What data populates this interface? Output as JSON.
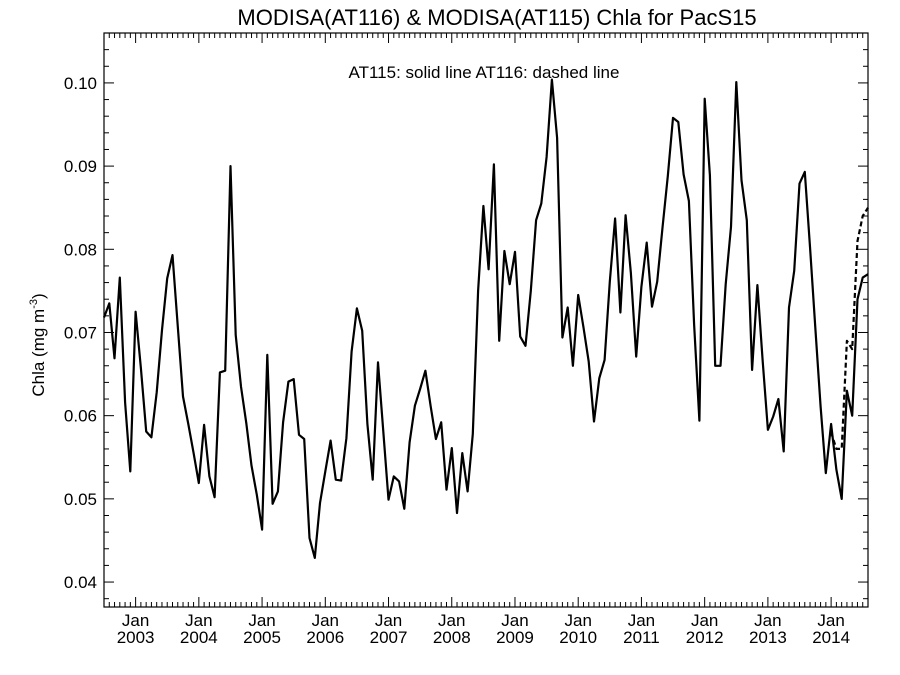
{
  "chart_data": {
    "type": "line",
    "title": "MODISA(AT116) & MODISA(AT115)  Chla for PacS15",
    "annotation": "AT115: solid line   AT116: dashed line",
    "ylabel": "Chla (mg m",
    "ylabel_superscript": "-3",
    "ylabel_close": ")",
    "ylim": [
      0.037,
      0.106
    ],
    "xlim": [
      "2002-07-01",
      "2014-08-01"
    ],
    "y_ticks": [
      "0.04",
      "0.05",
      "0.06",
      "0.07",
      "0.08",
      "0.09",
      "0.10"
    ],
    "x_tick_month": "Jan",
    "x_tick_years": [
      "2003",
      "2004",
      "2005",
      "2006",
      "2007",
      "2008",
      "2009",
      "2010",
      "2011",
      "2012",
      "2013",
      "2014"
    ],
    "series": [
      {
        "name": "AT115",
        "style": "solid",
        "points": [
          [
            "2002-07",
            0.0718
          ],
          [
            "2002-08",
            0.0735
          ],
          [
            "2002-09",
            0.0669
          ],
          [
            "2002-10",
            0.0766
          ],
          [
            "2002-11",
            0.0616
          ],
          [
            "2002-12",
            0.0533
          ],
          [
            "2003-01",
            0.0725
          ],
          [
            "2003-02",
            0.0657
          ],
          [
            "2003-03",
            0.0581
          ],
          [
            "2003-04",
            0.0574
          ],
          [
            "2003-05",
            0.0628
          ],
          [
            "2003-06",
            0.0703
          ],
          [
            "2003-07",
            0.0765
          ],
          [
            "2003-08",
            0.0793
          ],
          [
            "2003-09",
            0.0707
          ],
          [
            "2003-10",
            0.0623
          ],
          [
            "2003-11",
            0.059
          ],
          [
            "2003-12",
            0.0555
          ],
          [
            "2004-01",
            0.0519
          ],
          [
            "2004-02",
            0.0589
          ],
          [
            "2004-03",
            0.0527
          ],
          [
            "2004-04",
            0.0502
          ],
          [
            "2004-05",
            0.0652
          ],
          [
            "2004-06",
            0.0654
          ],
          [
            "2004-07",
            0.09
          ],
          [
            "2004-08",
            0.0697
          ],
          [
            "2004-09",
            0.0635
          ],
          [
            "2004-10",
            0.0591
          ],
          [
            "2004-11",
            0.054
          ],
          [
            "2004-12",
            0.0505
          ],
          [
            "2005-01",
            0.0463
          ],
          [
            "2005-02",
            0.0673
          ],
          [
            "2005-03",
            0.0494
          ],
          [
            "2005-04",
            0.0509
          ],
          [
            "2005-05",
            0.0592
          ],
          [
            "2005-06",
            0.0641
          ],
          [
            "2005-07",
            0.0644
          ],
          [
            "2005-08",
            0.0577
          ],
          [
            "2005-09",
            0.0572
          ],
          [
            "2005-10",
            0.0453
          ],
          [
            "2005-11",
            0.0429
          ],
          [
            "2005-12",
            0.0495
          ],
          [
            "2006-01",
            0.0533
          ],
          [
            "2006-02",
            0.057
          ],
          [
            "2006-03",
            0.0523
          ],
          [
            "2006-04",
            0.0522
          ],
          [
            "2006-05",
            0.0573
          ],
          [
            "2006-06",
            0.0677
          ],
          [
            "2006-07",
            0.0729
          ],
          [
            "2006-08",
            0.0702
          ],
          [
            "2006-09",
            0.059
          ],
          [
            "2006-10",
            0.0523
          ],
          [
            "2006-11",
            0.0664
          ],
          [
            "2006-12",
            0.0581
          ],
          [
            "2007-01",
            0.0499
          ],
          [
            "2007-02",
            0.0527
          ],
          [
            "2007-03",
            0.0521
          ],
          [
            "2007-04",
            0.0488
          ],
          [
            "2007-05",
            0.0568
          ],
          [
            "2007-06",
            0.0612
          ],
          [
            "2007-07",
            0.0632
          ],
          [
            "2007-08",
            0.0654
          ],
          [
            "2007-09",
            0.0611
          ],
          [
            "2007-10",
            0.0572
          ],
          [
            "2007-11",
            0.0592
          ],
          [
            "2007-12",
            0.0511
          ],
          [
            "2008-01",
            0.0561
          ],
          [
            "2008-02",
            0.0483
          ],
          [
            "2008-03",
            0.0555
          ],
          [
            "2008-04",
            0.0509
          ],
          [
            "2008-05",
            0.0578
          ],
          [
            "2008-06",
            0.075
          ],
          [
            "2008-07",
            0.0852
          ],
          [
            "2008-08",
            0.0776
          ],
          [
            "2008-09",
            0.0902
          ],
          [
            "2008-10",
            0.069
          ],
          [
            "2008-11",
            0.0798
          ],
          [
            "2008-12",
            0.0758
          ],
          [
            "2009-01",
            0.0797
          ],
          [
            "2009-02",
            0.0695
          ],
          [
            "2009-03",
            0.0684
          ],
          [
            "2009-04",
            0.075
          ],
          [
            "2009-05",
            0.0835
          ],
          [
            "2009-06",
            0.0855
          ],
          [
            "2009-07",
            0.0911
          ],
          [
            "2009-08",
            0.1004
          ],
          [
            "2009-09",
            0.0934
          ],
          [
            "2009-10",
            0.0694
          ],
          [
            "2009-11",
            0.073
          ],
          [
            "2009-12",
            0.066
          ],
          [
            "2010-01",
            0.0745
          ],
          [
            "2010-02",
            0.0706
          ],
          [
            "2010-03",
            0.0665
          ],
          [
            "2010-04",
            0.0593
          ],
          [
            "2010-05",
            0.0645
          ],
          [
            "2010-06",
            0.0667
          ],
          [
            "2010-07",
            0.0761
          ],
          [
            "2010-08",
            0.0837
          ],
          [
            "2010-09",
            0.0724
          ],
          [
            "2010-10",
            0.0841
          ],
          [
            "2010-11",
            0.0771
          ],
          [
            "2010-12",
            0.0671
          ],
          [
            "2011-01",
            0.0755
          ],
          [
            "2011-02",
            0.0808
          ],
          [
            "2011-03",
            0.0731
          ],
          [
            "2011-04",
            0.0761
          ],
          [
            "2011-05",
            0.0826
          ],
          [
            "2011-06",
            0.0888
          ],
          [
            "2011-07",
            0.0958
          ],
          [
            "2011-08",
            0.0953
          ],
          [
            "2011-09",
            0.089
          ],
          [
            "2011-10",
            0.0858
          ],
          [
            "2011-11",
            0.071
          ],
          [
            "2011-12",
            0.0594
          ],
          [
            "2012-01",
            0.0981
          ],
          [
            "2012-02",
            0.0889
          ],
          [
            "2012-03",
            0.066
          ],
          [
            "2012-04",
            0.066
          ],
          [
            "2012-05",
            0.0758
          ],
          [
            "2012-06",
            0.0827
          ],
          [
            "2012-07",
            0.1001
          ],
          [
            "2012-08",
            0.0883
          ],
          [
            "2012-09",
            0.0835
          ],
          [
            "2012-10",
            0.0655
          ],
          [
            "2012-11",
            0.0757
          ],
          [
            "2012-12",
            0.0667
          ],
          [
            "2013-01",
            0.0583
          ],
          [
            "2013-02",
            0.0599
          ],
          [
            "2013-03",
            0.062
          ],
          [
            "2013-04",
            0.0557
          ],
          [
            "2013-05",
            0.073
          ],
          [
            "2013-06",
            0.0774
          ],
          [
            "2013-07",
            0.0879
          ],
          [
            "2013-08",
            0.0893
          ],
          [
            "2013-09",
            0.0803
          ],
          [
            "2013-10",
            0.0706
          ],
          [
            "2013-11",
            0.0611
          ],
          [
            "2013-12",
            0.0531
          ],
          [
            "2014-01",
            0.059
          ],
          [
            "2014-02",
            0.0535
          ],
          [
            "2014-03",
            0.05
          ],
          [
            "2014-04",
            0.063
          ],
          [
            "2014-05",
            0.06
          ],
          [
            "2014-06",
            0.074
          ],
          [
            "2014-07",
            0.0766
          ],
          [
            "2014-08",
            0.077
          ]
        ]
      },
      {
        "name": "AT116",
        "style": "dashed",
        "points": [
          [
            "2014-01",
            0.058
          ],
          [
            "2014-02",
            0.056
          ],
          [
            "2014-03",
            0.056
          ],
          [
            "2014-04",
            0.069
          ],
          [
            "2014-05",
            0.068
          ],
          [
            "2014-06",
            0.081
          ],
          [
            "2014-07",
            0.084
          ],
          [
            "2014-08",
            0.085
          ]
        ]
      }
    ]
  }
}
